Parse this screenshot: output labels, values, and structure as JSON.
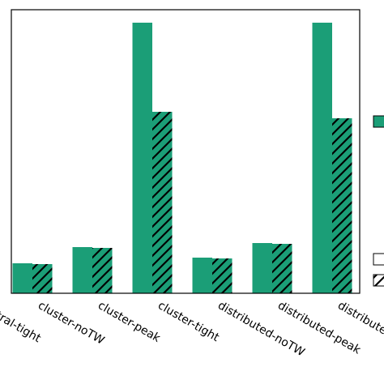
{
  "chart_data": {
    "type": "bar",
    "categories": [
      "central-tight",
      "cluster-noTW",
      "cluster-peak",
      "cluster-tight",
      "distributed-noTW",
      "distributed-peak",
      "distributed-tight"
    ],
    "series": [
      {
        "color": "#1b9e77",
        "hatch": false,
        "values": [
          37,
          57,
          334,
          44,
          62,
          334,
          null
        ]
      },
      {
        "color": "#1b9e77",
        "hatch": true,
        "values": [
          36,
          56,
          224,
          43,
          61,
          216,
          null
        ]
      }
    ],
    "ylim": [
      0,
      350
    ]
  }
}
